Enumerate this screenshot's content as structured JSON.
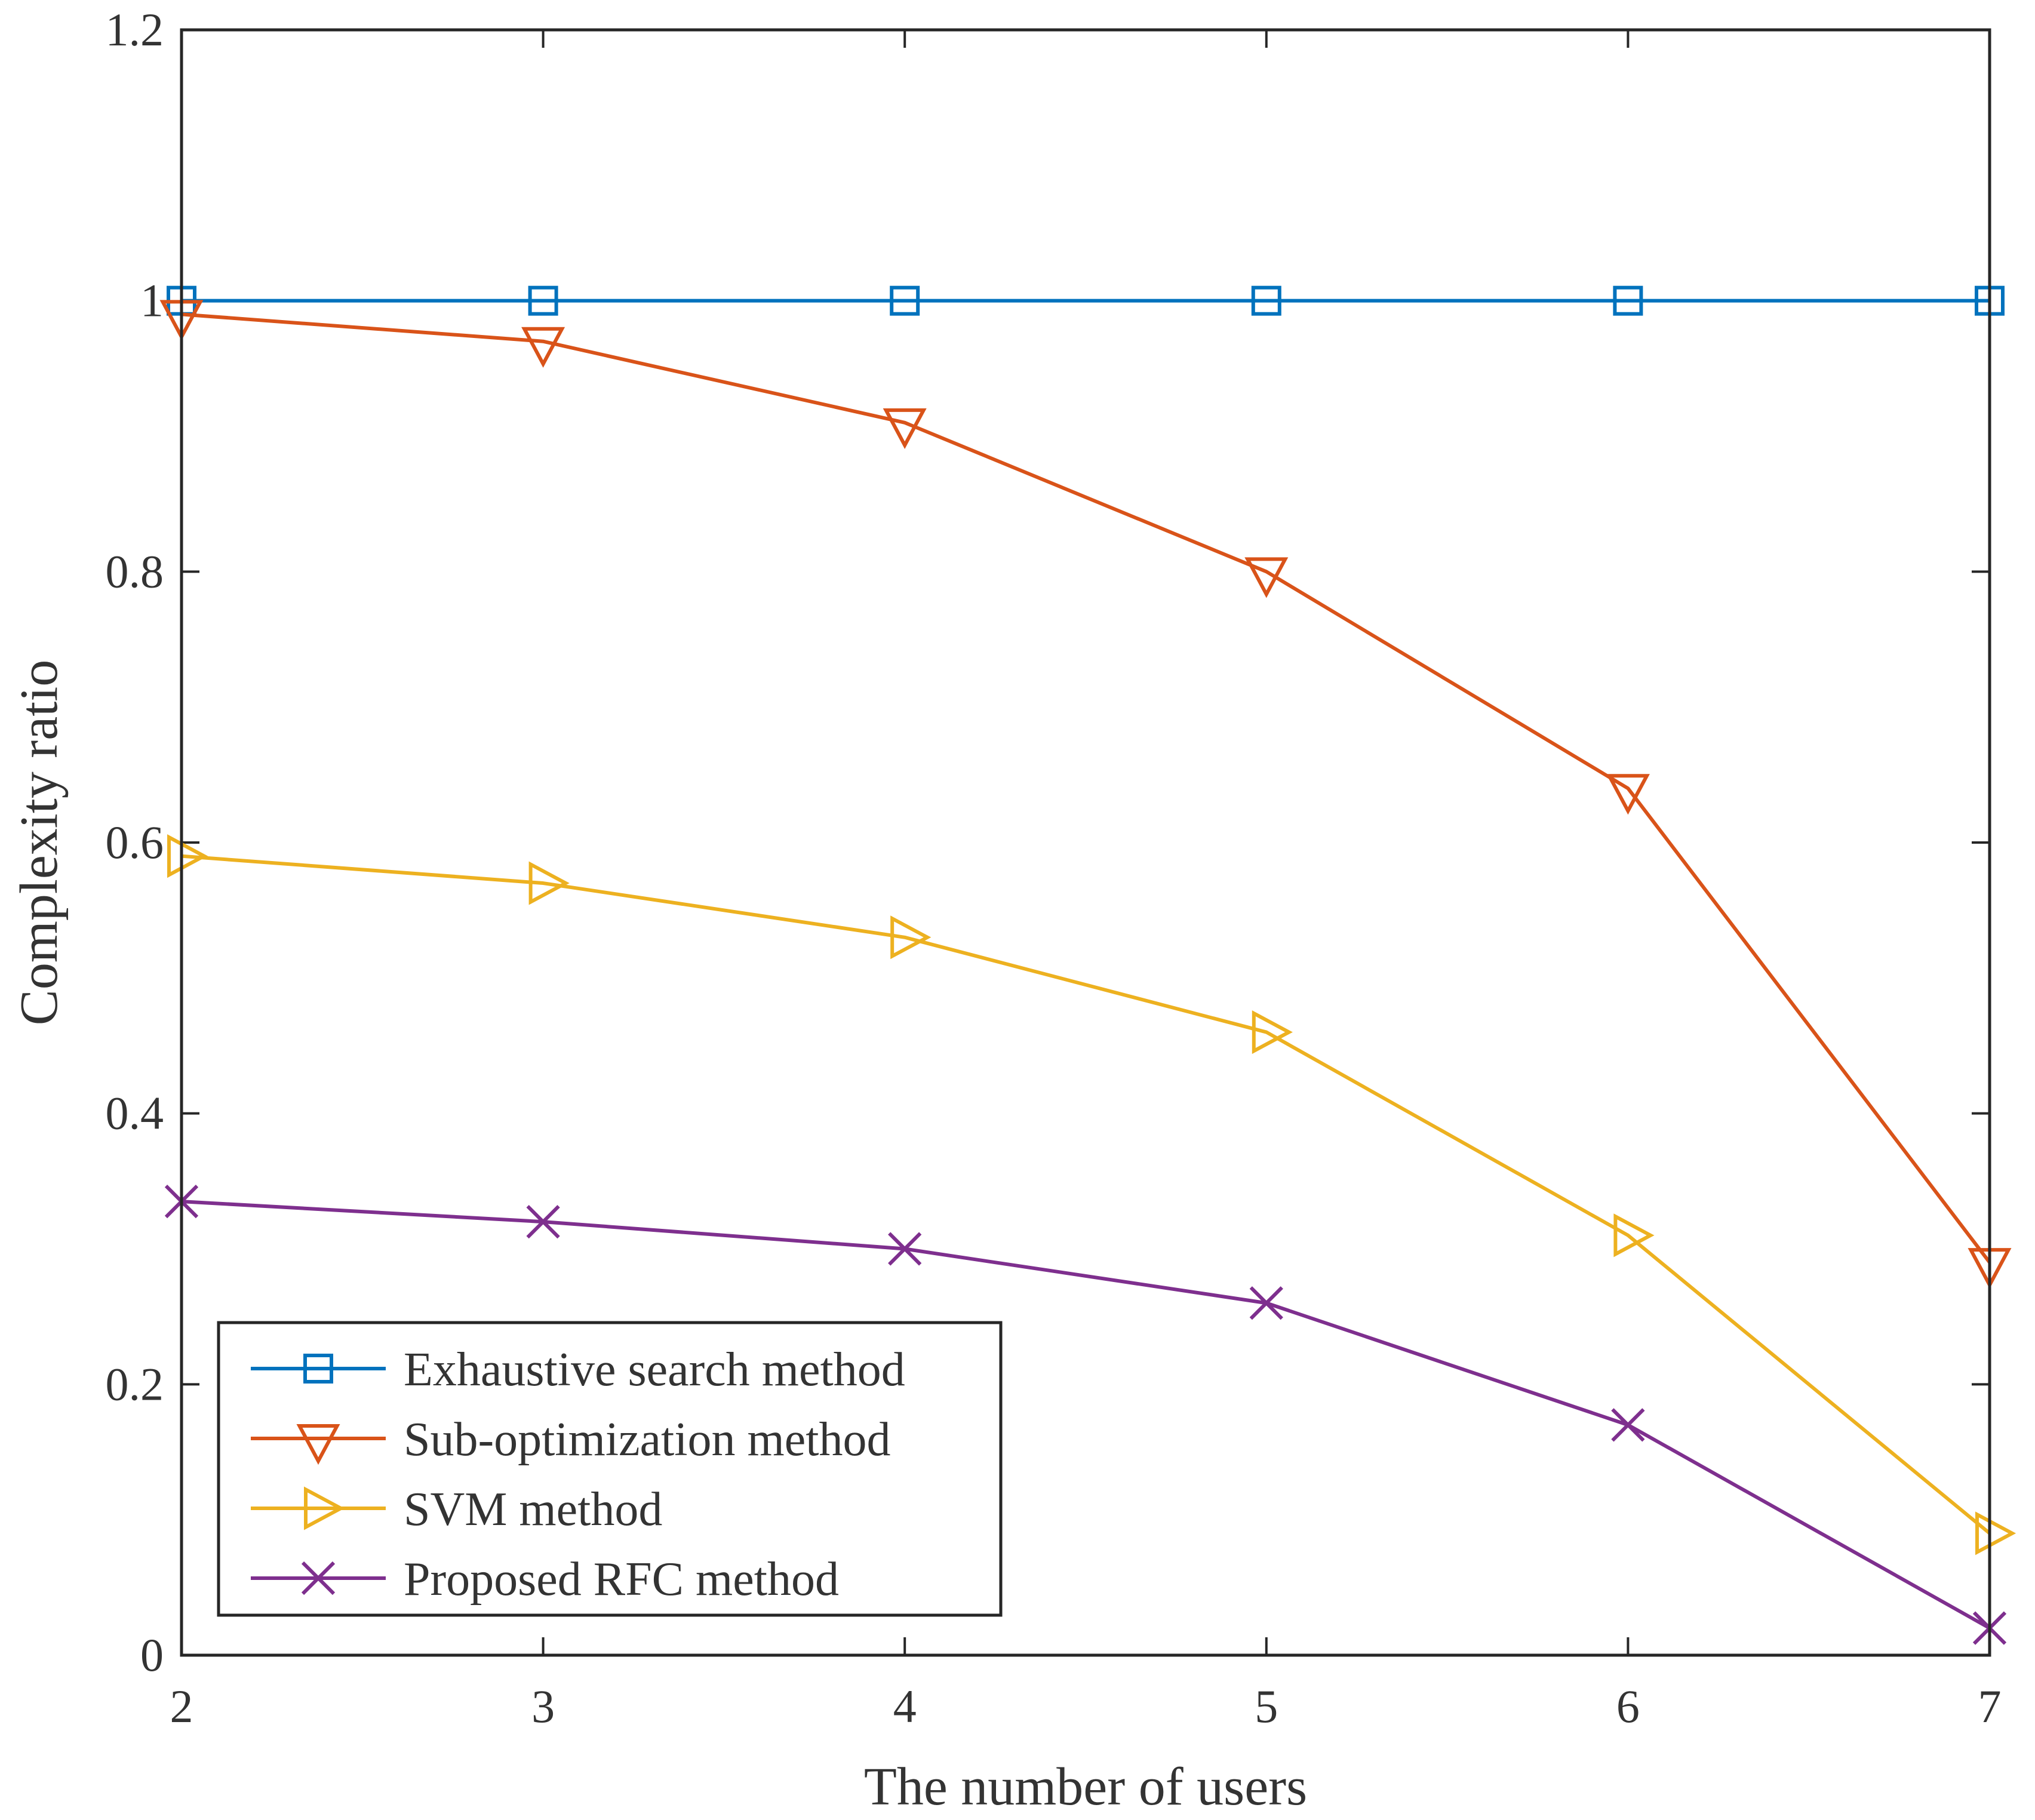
{
  "chart_data": {
    "type": "line",
    "title": "",
    "xlabel": "The number of users",
    "ylabel": "Complexity ratio",
    "xlim": [
      2,
      7
    ],
    "ylim": [
      0,
      1.2
    ],
    "x": [
      2,
      3,
      4,
      5,
      6,
      7
    ],
    "xticks": [
      "2",
      "3",
      "4",
      "5",
      "6",
      "7"
    ],
    "yticks": [
      "0",
      "0.2",
      "0.4",
      "0.6",
      "0.8",
      "1",
      "1.2"
    ],
    "grid": false,
    "legend_position": "bottom-left",
    "series": [
      {
        "name": "Exhaustive search method",
        "marker": "square",
        "color": "#0072BD",
        "values": [
          1.0,
          1.0,
          1.0,
          1.0,
          1.0,
          1.0
        ]
      },
      {
        "name": "Sub-optimization method",
        "marker": "triangle-down",
        "color": "#D95319",
        "values": [
          0.99,
          0.97,
          0.91,
          0.8,
          0.64,
          0.29
        ]
      },
      {
        "name": "SVM method",
        "marker": "triangle-right",
        "color": "#EDB120",
        "values": [
          0.59,
          0.57,
          0.53,
          0.46,
          0.31,
          0.09
        ]
      },
      {
        "name": "Proposed RFC method",
        "marker": "x",
        "color": "#7E2F8E",
        "values": [
          0.335,
          0.32,
          0.3,
          0.26,
          0.17,
          0.02
        ]
      }
    ]
  }
}
